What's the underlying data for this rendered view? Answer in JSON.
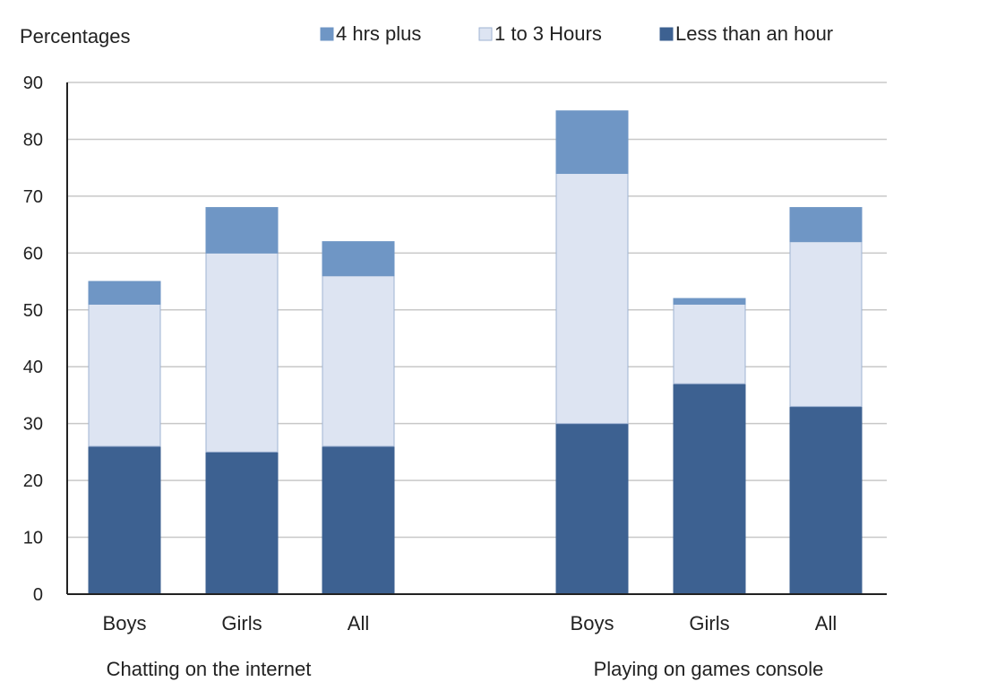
{
  "chart_data": {
    "type": "bar",
    "stacked": true,
    "ylabel": "Percentages",
    "ylim": [
      0,
      90
    ],
    "yticks": [
      0,
      10,
      20,
      30,
      40,
      50,
      60,
      70,
      80,
      90
    ],
    "grid": true,
    "legend_position": "top",
    "groups": [
      {
        "name": "Chatting on the internet",
        "categories": [
          "Boys",
          "Girls",
          "All"
        ]
      },
      {
        "name": "Playing on games console",
        "categories": [
          "Boys",
          "Girls",
          "All"
        ]
      }
    ],
    "categories": [
      "Boys",
      "Girls",
      "All",
      "Boys",
      "Girls",
      "All"
    ],
    "series": [
      {
        "name": "Less than an hour",
        "color": "#3d6191",
        "values": [
          26,
          25,
          26,
          30,
          37,
          33
        ]
      },
      {
        "name": "1 to 3 Hours",
        "color": "#dde4f2",
        "values": [
          25,
          35,
          30,
          44,
          14,
          29
        ]
      },
      {
        "name": "4 hrs plus",
        "color": "#6f96c5",
        "values": [
          4,
          8,
          6,
          11,
          1,
          6
        ]
      }
    ],
    "legend_order": [
      "4 hrs plus",
      "1 to 3 Hours",
      "Less than an hour"
    ]
  }
}
